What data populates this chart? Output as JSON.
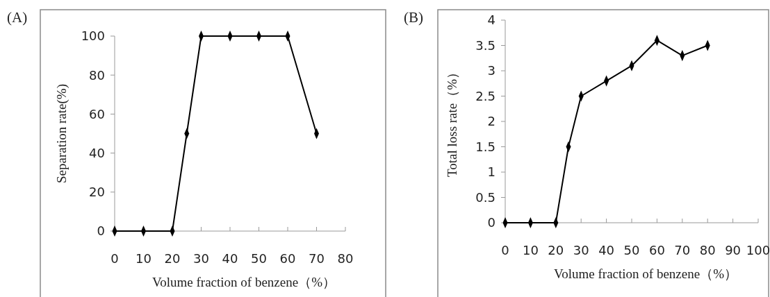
{
  "chart_data": [
    {
      "type": "line",
      "xlabel": "Volume fraction of benzene（%）",
      "ylabel": "Separation rate(%)",
      "annotations": [
        "(A)"
      ],
      "x": [
        0,
        10,
        20,
        25,
        30,
        40,
        50,
        60,
        70
      ],
      "series": [
        {
          "color": "#000000",
          "values": [
            0,
            0,
            0,
            50,
            100,
            100,
            100,
            100,
            50
          ]
        }
      ],
      "xlim": [
        0,
        80
      ],
      "xticks": [
        0,
        10,
        20,
        30,
        40,
        50,
        60,
        70,
        80
      ],
      "ylim": [
        0,
        100
      ],
      "yticks": [
        0,
        20,
        40,
        60,
        80,
        100
      ],
      "marker": "diamond"
    },
    {
      "type": "line",
      "xlabel": "Volume fraction of benzene（%）",
      "ylabel": "Total loss rate（%）",
      "annotations": [
        "(B)"
      ],
      "x": [
        0,
        10,
        20,
        25,
        30,
        40,
        50,
        60,
        70,
        80
      ],
      "series": [
        {
          "color": "#000000",
          "values": [
            0,
            0,
            0,
            1.5,
            2.5,
            2.8,
            3.1,
            3.6,
            3.3,
            3.5
          ]
        }
      ],
      "xlim": [
        0,
        100
      ],
      "xticks": [
        0,
        10,
        20,
        30,
        40,
        50,
        60,
        70,
        80,
        90,
        100
      ],
      "ylim": [
        0,
        4
      ],
      "yticks": [
        0,
        0.5,
        1,
        1.5,
        2,
        2.5,
        3,
        3.5,
        4
      ],
      "marker": "diamond"
    }
  ]
}
